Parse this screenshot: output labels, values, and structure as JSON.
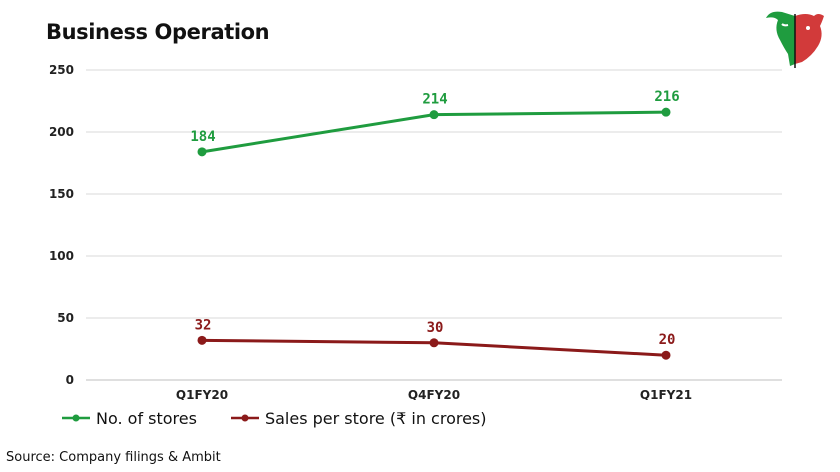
{
  "page": {
    "title": "Business Operation",
    "source": "Source: Company filings & Ambit"
  },
  "colors": {
    "stores": "#1f9c3f",
    "sales": "#8b1a1a",
    "grid": "#d9d9d9"
  },
  "logo": {
    "name": "bull-bear-logo"
  },
  "chart_data": {
    "type": "line",
    "title": "Business Operation",
    "categories": [
      "Q1FY20",
      "Q4FY20",
      "Q1FY21"
    ],
    "ylim": [
      0,
      250
    ],
    "yticks": [
      0,
      50,
      100,
      150,
      200,
      250
    ],
    "grid": true,
    "legend_position": "bottom-left",
    "series": [
      {
        "name": "No. of stores",
        "values": [
          184,
          214,
          216
        ],
        "color": "#1f9c3f"
      },
      {
        "name": "Sales per store (₹ in crores)",
        "values": [
          32,
          30,
          20
        ],
        "color": "#8b1a1a"
      }
    ]
  }
}
